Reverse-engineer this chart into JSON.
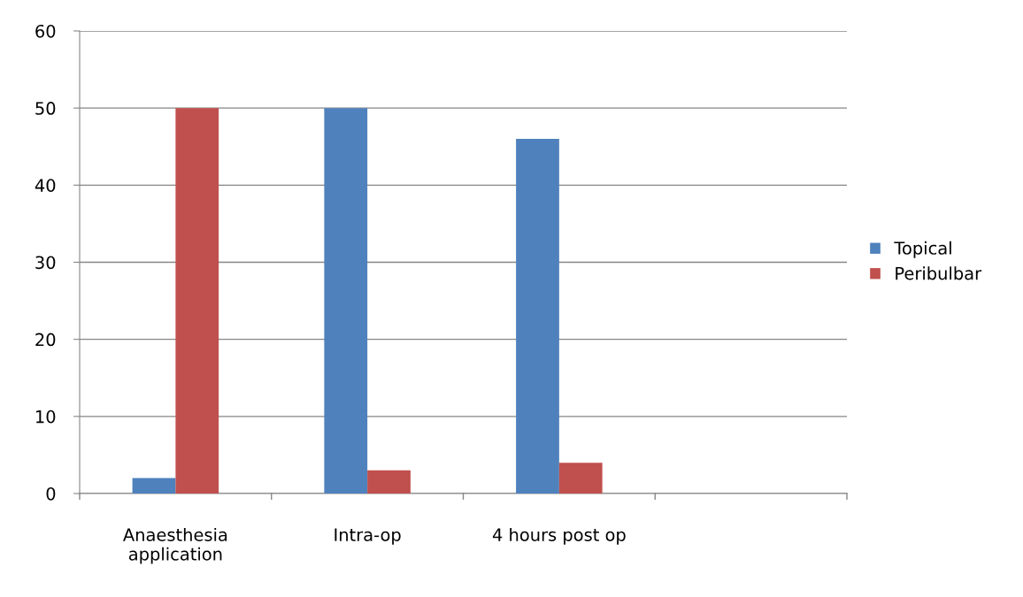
{
  "chart_data": {
    "type": "bar",
    "categories": [
      "Anaesthesia\napplication",
      "Intra-op",
      "4 hours post op",
      null
    ],
    "series": [
      {
        "name": "Topical",
        "color": "#4f81bd",
        "values": [
          2,
          50,
          46,
          null
        ]
      },
      {
        "name": "Peribulbar",
        "color": "#c0504d",
        "values": [
          50,
          3,
          4,
          null
        ]
      }
    ],
    "ylim": [
      0,
      60
    ],
    "yticks": [
      0,
      10,
      20,
      30,
      40,
      50,
      60
    ],
    "grid": "y",
    "legend": "right"
  }
}
